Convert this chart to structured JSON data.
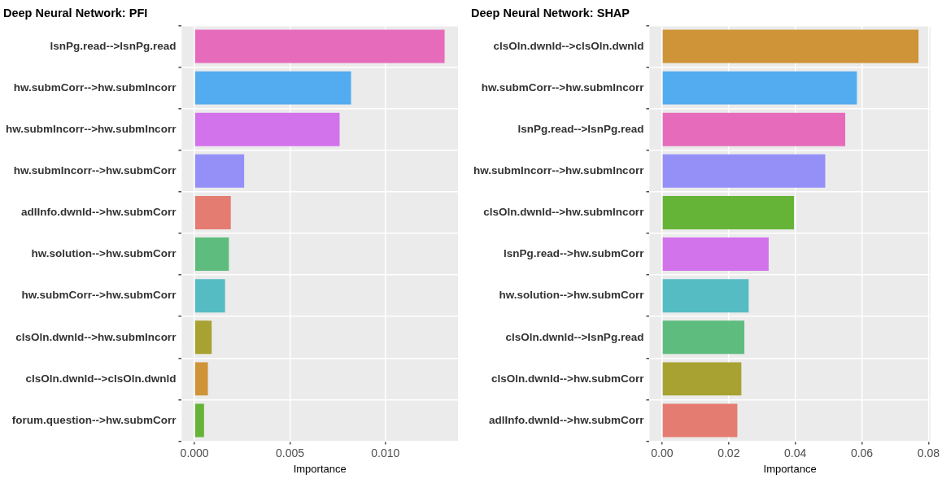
{
  "chart_data": [
    {
      "type": "bar",
      "orientation": "horizontal",
      "title": "Deep Neural Network: PFI",
      "xlabel": "Importance",
      "categories": [
        "lsnPg.read-->lsnPg.read",
        "hw.submCorr-->hw.submIncorr",
        "hw.submIncorr-->hw.submIncorr",
        "hw.submIncorr-->hw.submCorr",
        "adlInfo.dwnld-->hw.submCorr",
        "hw.solution-->hw.submCorr",
        "hw.submCorr-->hw.submCorr",
        "clsOln.dwnld-->hw.submIncorr",
        "clsOln.dwnld-->clsOln.dwnld",
        "forum.question-->hw.submCorr"
      ],
      "values": [
        0.0131,
        0.0082,
        0.0076,
        0.0026,
        0.0019,
        0.0018,
        0.0016,
        0.0009,
        0.0007,
        0.0005
      ],
      "colors": [
        "#e76bbb",
        "#53acf0",
        "#d373ec",
        "#9590f8",
        "#e57c71",
        "#5ebd7e",
        "#55bcc4",
        "#a8a233",
        "#cf9338",
        "#66b437"
      ],
      "xlim": [
        -0.00067,
        0.0138
      ],
      "xticks": [
        {
          "value": 0,
          "label": "0.000"
        },
        {
          "value": 0.005,
          "label": "0.005"
        },
        {
          "value": 0.01,
          "label": "0.010"
        }
      ],
      "grid": true
    },
    {
      "type": "bar",
      "orientation": "horizontal",
      "title": "Deep Neural Network: SHAP",
      "xlabel": "Importance",
      "categories": [
        "clsOln.dwnld-->clsOln.dwnld",
        "hw.submCorr-->hw.submIncorr",
        "lsnPg.read-->lsnPg.read",
        "hw.submIncorr-->hw.submIncorr",
        "clsOln.dwnld-->hw.submIncorr",
        "lsnPg.read-->hw.submCorr",
        "hw.solution-->hw.submCorr",
        "clsOln.dwnld-->lsnPg.read",
        "clsOln.dwnld-->hw.submCorr",
        "adlInfo.dwnld-->hw.submCorr"
      ],
      "values": [
        0.077,
        0.0585,
        0.055,
        0.049,
        0.0396,
        0.032,
        0.026,
        0.0247,
        0.0238,
        0.0226
      ],
      "colors": [
        "#cf9338",
        "#53acf0",
        "#e76bbb",
        "#9590f8",
        "#66b437",
        "#d373ec",
        "#55bcc4",
        "#5ebd7e",
        "#a8a233",
        "#e57c71"
      ],
      "xlim": [
        -0.0038,
        0.0806
      ],
      "xticks": [
        {
          "value": 0,
          "label": "0.00"
        },
        {
          "value": 0.02,
          "label": "0.02"
        },
        {
          "value": 0.04,
          "label": "0.04"
        },
        {
          "value": 0.06,
          "label": "0.06"
        },
        {
          "value": 0.08,
          "label": "0.08"
        }
      ],
      "grid": true
    }
  ]
}
